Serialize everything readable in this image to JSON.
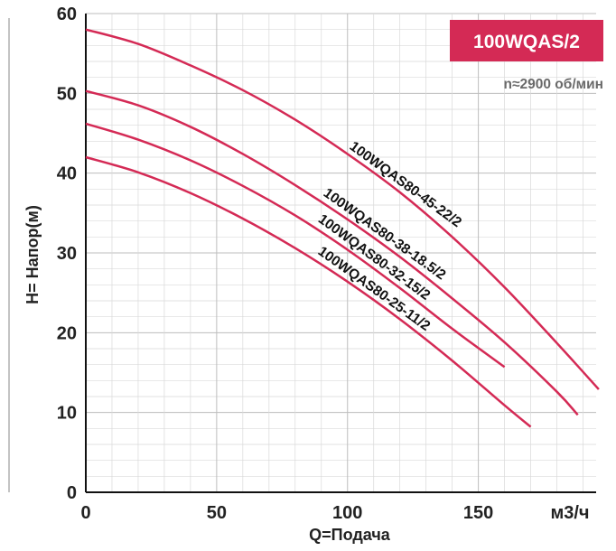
{
  "chart_data": {
    "type": "line",
    "title": "100WQAS/2",
    "subtitle": "n≈2900 об/мин",
    "xlabel": "Q=Подача",
    "ylabel": "H= Напор(м)",
    "x_unit": "м3/ч",
    "xlim": [
      0,
      195
    ],
    "ylim": [
      0,
      60
    ],
    "x_ticks": [
      "0",
      "50",
      "100",
      "150"
    ],
    "y_ticks": [
      "0",
      "10",
      "20",
      "30",
      "40",
      "50",
      "60"
    ],
    "grid": true,
    "colors": {
      "curve": "#d42a55",
      "badge": "#d42a55",
      "grid": "#d9d9d9"
    },
    "series": [
      {
        "name": "100WQAS80-45-22/2",
        "x": [
          0,
          20,
          40,
          60,
          80,
          100,
          120,
          140,
          160,
          180,
          196
        ],
        "y": [
          58,
          56.2,
          53.5,
          50.4,
          46.7,
          42.4,
          37.6,
          32.0,
          25.7,
          18.7,
          12.9
        ]
      },
      {
        "name": "100WQAS80-38-18.5/2",
        "x": [
          0,
          20,
          40,
          60,
          80,
          100,
          120,
          140,
          160,
          180,
          188
        ],
        "y": [
          50.3,
          48.5,
          45.8,
          42.4,
          38.5,
          34.2,
          29.5,
          24.3,
          18.8,
          12.6,
          9.7
        ]
      },
      {
        "name": "100WQAS80-32-15/2",
        "x": [
          0,
          20,
          40,
          60,
          80,
          100,
          120,
          140,
          160
        ],
        "y": [
          46.2,
          44.2,
          41.6,
          38.4,
          34.7,
          30.4,
          25.6,
          20.5,
          15.7
        ]
      },
      {
        "name": "100WQAS80-25-11/2",
        "x": [
          0,
          20,
          40,
          60,
          80,
          100,
          120,
          140,
          160,
          170
        ],
        "y": [
          42,
          40.1,
          37.5,
          34.3,
          30.6,
          26.4,
          21.7,
          16.5,
          10.9,
          8.2
        ]
      }
    ]
  }
}
